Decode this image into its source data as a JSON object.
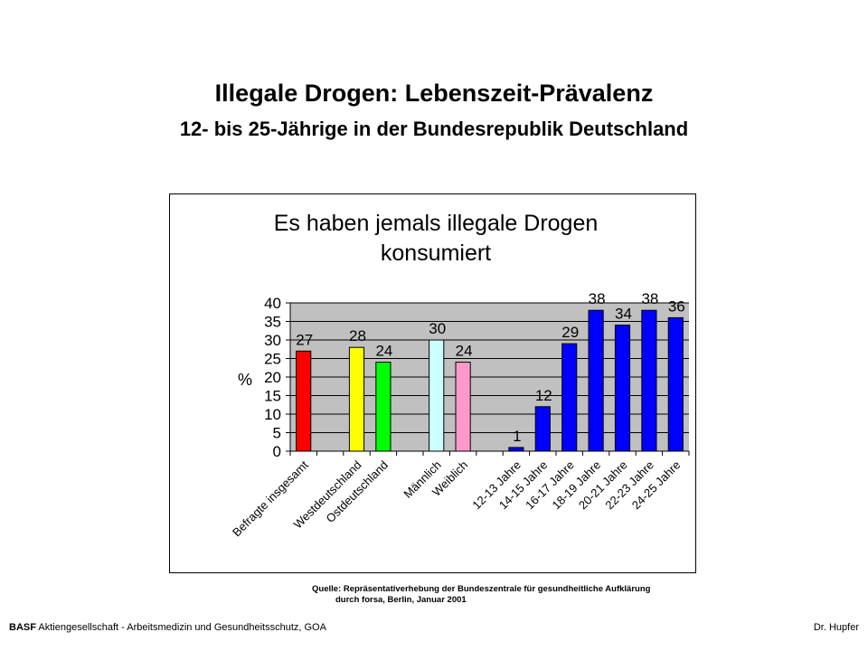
{
  "slide": {
    "title": "Illegale Drogen: Lebenszeit-Prävalenz",
    "subtitle": "12- bis 25-Jährige in der Bundesrepublik Deutschland"
  },
  "chart_data": {
    "type": "bar",
    "title_line1": "Es haben jemals illegale Drogen",
    "title_line2": "konsumiert",
    "ylabel": "%",
    "ylim": [
      0,
      40
    ],
    "yticks": [
      0,
      5,
      10,
      15,
      20,
      25,
      30,
      35,
      40
    ],
    "grid": true,
    "plot_background": "#c0c0c0",
    "categories": [
      "Befragte insgesamt",
      "",
      "Westdeutschland",
      "Ostdeutschland",
      "",
      "Männlich",
      "Weiblich",
      "",
      "12-13 Jahre",
      "14-15 Jahre",
      "16-17 Jahre",
      "18-19 Jahre",
      "20-21 Jahre",
      "22-23 Jahre",
      "24-25 Jahre"
    ],
    "values": [
      27,
      null,
      28,
      24,
      null,
      30,
      24,
      null,
      1,
      12,
      29,
      38,
      34,
      38,
      36
    ],
    "colors": [
      "#ff0000",
      null,
      "#ffff00",
      "#00ff00",
      null,
      "#ccffff",
      "#ff99cc",
      null,
      "#0000ff",
      "#0000ff",
      "#0000ff",
      "#0000ff",
      "#0000ff",
      "#0000ff",
      "#0000ff"
    ]
  },
  "source": {
    "line1": "Quelle: Repräsentativerhebung der Bundeszentrale für gesundheitliche Aufklärung",
    "line2": "durch forsa, Berlin, Januar 2001"
  },
  "footer": {
    "brand": "BASF",
    "left": "Aktiengesellschaft - Arbeitsmedizin und Gesundheitsschutz, GOA",
    "right": "Dr. Hupfer"
  }
}
